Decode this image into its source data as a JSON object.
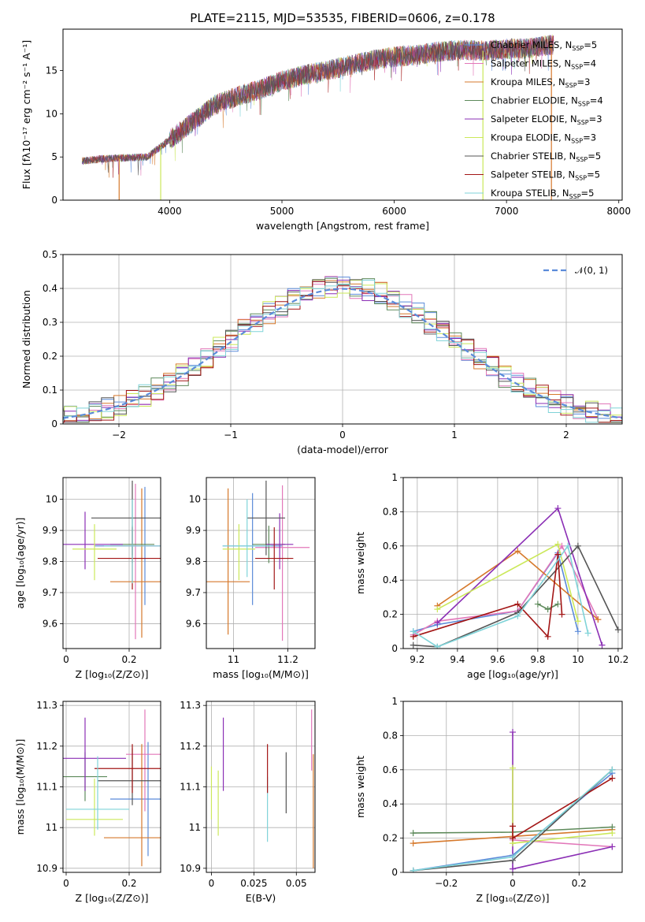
{
  "figure_title": "PLATE=2115, MJD=53535, FIBERID=0606, z=0.178",
  "colors": [
    "#5b8bd9",
    "#e277b9",
    "#d6792c",
    "#5e8a5b",
    "#8b2fb5",
    "#cbe85a",
    "#555555",
    "#a31616",
    "#7fd3d8"
  ],
  "legend_entries": [
    {
      "label": "Chabrier MILES, N",
      "sub": "SSP",
      "suffix": "=5"
    },
    {
      "label": "Salpeter MILES, N",
      "sub": "SSP",
      "suffix": "=4"
    },
    {
      "label": "Kroupa MILES, N",
      "sub": "SSP",
      "suffix": "=3"
    },
    {
      "label": "Chabrier ELODIE, N",
      "sub": "SSP",
      "suffix": "=4"
    },
    {
      "label": "Salpeter ELODIE, N",
      "sub": "SSP",
      "suffix": "=3"
    },
    {
      "label": "Kroupa ELODIE, N",
      "sub": "SSP",
      "suffix": "=3"
    },
    {
      "label": "Chabrier STELIB, N",
      "sub": "SSP",
      "suffix": "=5"
    },
    {
      "label": "Salpeter STELIB, N",
      "sub": "SSP",
      "suffix": "=5"
    },
    {
      "label": "Kroupa STELIB, N",
      "sub": "SSP",
      "suffix": "=5"
    }
  ],
  "chart_data": [
    {
      "id": "spectrum",
      "type": "line",
      "xlabel": "wavelength [Angstrom, rest frame]",
      "ylabel": "Flux [fλ10⁻¹⁷ erg cm⁻² s⁻¹ A⁻¹]",
      "xlim": [
        3050,
        8030
      ],
      "ylim": [
        0,
        19.8
      ],
      "xticks": [
        4000,
        5000,
        6000,
        7000,
        8000
      ],
      "yticks": [
        0,
        5,
        10,
        15
      ],
      "grid": false,
      "legend": "upper-right",
      "envelope": {
        "x": [
          3200,
          3400,
          3600,
          3800,
          4000,
          4200,
          4400,
          4600,
          4800,
          5000,
          5200,
          5400,
          5600,
          5800,
          6000,
          6200,
          6400,
          6600,
          6800,
          7000,
          7200,
          7400
        ],
        "y": [
          4.5,
          4.8,
          4.9,
          5.0,
          7.0,
          9.0,
          11.0,
          12.0,
          12.8,
          13.8,
          14.5,
          15.0,
          15.6,
          16.2,
          16.6,
          16.8,
          17.2,
          17.4,
          17.3,
          17.5,
          17.6,
          18.0
        ]
      },
      "dips": [
        {
          "x": 3550,
          "color_index": 2
        },
        {
          "x": 3920,
          "color_index": 5
        },
        {
          "x": 6790,
          "color_index": 5
        },
        {
          "x": 7400,
          "color_index": 2
        }
      ]
    },
    {
      "id": "residuals",
      "type": "histogram",
      "xlabel": "(data-model)/error",
      "ylabel": "Normed distribution",
      "xlim": [
        -2.5,
        2.5
      ],
      "ylim": [
        0,
        0.5
      ],
      "xticks": [
        -2,
        -1,
        0,
        1,
        2
      ],
      "yticks": [
        0,
        0.1,
        0.2,
        0.3,
        0.4,
        0.5
      ],
      "grid": true,
      "bin_width": 0.111,
      "reference": {
        "label": "𝒩(0, 1)",
        "mean": 0,
        "sigma": 1,
        "color": "#5b8bd9"
      }
    },
    {
      "id": "age-vs-Z",
      "type": "errorbar",
      "xlabel": "Z [log₁₀(Z/Z⊙)]",
      "ylabel": "age  [log₁₀(age/yr)]",
      "xlim": [
        -0.01,
        0.3
      ],
      "ylim": [
        9.52,
        10.07
      ],
      "xticks": [
        0.0,
        0.2
      ],
      "yticks": [
        9.6,
        9.7,
        9.8,
        9.9,
        10.0
      ],
      "grid": true,
      "points": [
        {
          "c": 0,
          "x": 0.25,
          "y": 9.85,
          "xerr": 0.16,
          "yerr": [
            0.19,
            0.19
          ]
        },
        {
          "c": 1,
          "x": 0.22,
          "y": 9.85,
          "xerr": 0.08,
          "yerr": [
            0.3,
            0.2
          ]
        },
        {
          "c": 2,
          "x": 0.24,
          "y": 9.735,
          "xerr": 0.1,
          "yerr": [
            0.18,
            0.3
          ]
        },
        {
          "c": 3,
          "x": 0.21,
          "y": 9.855,
          "xerr": 0.07,
          "yerr": [
            0.06,
            0.06
          ]
        },
        {
          "c": 4,
          "x": 0.06,
          "y": 9.855,
          "xerr": 0.12,
          "yerr": [
            0.08,
            0.105
          ]
        },
        {
          "c": 5,
          "x": 0.09,
          "y": 9.84,
          "xerr": 0.07,
          "yerr": [
            0.1,
            0.08
          ]
        },
        {
          "c": 6,
          "x": 0.21,
          "y": 9.94,
          "xerr": 0.13,
          "yerr": [
            0.12,
            0.12
          ]
        },
        {
          "c": 7,
          "x": 0.21,
          "y": 9.81,
          "xerr": 0.11,
          "yerr": [
            0.1,
            0.1
          ]
        },
        {
          "c": 8,
          "x": 0.21,
          "y": 9.85,
          "xerr": 0.09,
          "yerr": [
            0.12,
            0.15
          ]
        }
      ]
    },
    {
      "id": "age-vs-mass",
      "type": "errorbar",
      "xlabel": "mass [log₁₀(M/M⊙)]",
      "ylabel": "",
      "xlim": [
        10.9,
        11.3
      ],
      "ylim": [
        9.52,
        10.07
      ],
      "xticks": [
        11.0,
        11.2
      ],
      "yticks": [
        9.6,
        9.7,
        9.8,
        9.9,
        10.0
      ],
      "grid": true,
      "points": [
        {
          "c": 0,
          "x": 11.07,
          "y": 9.85,
          "xerr": 0.11,
          "yerr": [
            0.19,
            0.17
          ]
        },
        {
          "c": 1,
          "x": 11.18,
          "y": 9.845,
          "xerr": 0.1,
          "yerr": [
            0.3,
            0.2
          ]
        },
        {
          "c": 2,
          "x": 10.98,
          "y": 9.735,
          "xerr": 0.08,
          "yerr": [
            0.17,
            0.3
          ]
        },
        {
          "c": 3,
          "x": 11.13,
          "y": 9.855,
          "xerr": 0.06,
          "yerr": [
            0.06,
            0.06
          ]
        },
        {
          "c": 4,
          "x": 11.17,
          "y": 9.855,
          "xerr": 0.05,
          "yerr": [
            0.08,
            0.1
          ]
        },
        {
          "c": 5,
          "x": 11.02,
          "y": 9.84,
          "xerr": 0.06,
          "yerr": [
            0.1,
            0.08
          ]
        },
        {
          "c": 6,
          "x": 11.12,
          "y": 9.94,
          "xerr": 0.07,
          "yerr": [
            0.12,
            0.12
          ]
        },
        {
          "c": 7,
          "x": 11.15,
          "y": 9.81,
          "xerr": 0.07,
          "yerr": [
            0.1,
            0.1
          ]
        },
        {
          "c": 8,
          "x": 11.05,
          "y": 9.85,
          "xerr": 0.09,
          "yerr": [
            0.1,
            0.15
          ]
        }
      ]
    },
    {
      "id": "weight-vs-age",
      "type": "line",
      "xlabel": "age  [log₁₀(age/yr)]",
      "ylabel": "mass weight",
      "xlim": [
        9.13,
        10.22
      ],
      "ylim": [
        0,
        1.0
      ],
      "xticks": [
        9.2,
        9.4,
        9.6,
        9.8,
        10.0,
        10.2
      ],
      "yticks": [
        0.0,
        0.2,
        0.4,
        0.6,
        0.8,
        1.0
      ],
      "grid": true,
      "series": [
        {
          "c": 0,
          "x": [
            9.18,
            9.3,
            9.7,
            9.9,
            10.0
          ],
          "y": [
            0.1,
            0.14,
            0.22,
            0.56,
            0.1
          ]
        },
        {
          "c": 1,
          "x": [
            9.18,
            9.3,
            9.7,
            9.92,
            10.1
          ],
          "y": [
            0.08,
            0.16,
            0.22,
            0.6,
            0.17
          ]
        },
        {
          "c": 2,
          "x": [
            9.3,
            9.7,
            10.1
          ],
          "y": [
            0.25,
            0.57,
            0.17
          ]
        },
        {
          "c": 3,
          "x": [
            9.8,
            9.85,
            9.9
          ],
          "y": [
            0.26,
            0.23,
            0.26
          ]
        },
        {
          "c": 4,
          "x": [
            9.3,
            9.9,
            10.12
          ],
          "y": [
            0.15,
            0.82,
            0.02
          ]
        },
        {
          "c": 5,
          "x": [
            9.3,
            9.9,
            10.0
          ],
          "y": [
            0.23,
            0.61,
            0.16
          ]
        },
        {
          "c": 6,
          "x": [
            9.18,
            9.3,
            9.7,
            10.0,
            10.2
          ],
          "y": [
            0.02,
            0.01,
            0.21,
            0.6,
            0.11
          ]
        },
        {
          "c": 7,
          "x": [
            9.18,
            9.7,
            9.85,
            9.9,
            9.92
          ],
          "y": [
            0.07,
            0.26,
            0.07,
            0.55,
            0.2
          ]
        },
        {
          "c": 8,
          "x": [
            9.18,
            9.3,
            9.7,
            9.95,
            10.05
          ],
          "y": [
            0.1,
            0.01,
            0.19,
            0.6,
            0.09
          ]
        }
      ]
    },
    {
      "id": "mass-vs-Z",
      "type": "errorbar",
      "xlabel": "Z [log₁₀(Z/Z⊙)]",
      "ylabel": "mass [log₁₀(M/M⊙)]",
      "xlim": [
        -0.01,
        0.3
      ],
      "ylim": [
        10.89,
        11.31
      ],
      "xticks": [
        0.0,
        0.2
      ],
      "yticks": [
        10.9,
        11.0,
        11.1,
        11.2,
        11.3
      ],
      "grid": true,
      "points": [
        {
          "c": 0,
          "x": 0.26,
          "y": 11.07,
          "xerr": 0.12,
          "yerr": [
            0.14,
            0.14
          ]
        },
        {
          "c": 1,
          "x": 0.25,
          "y": 11.18,
          "xerr": 0.06,
          "yerr": [
            0.14,
            0.11
          ]
        },
        {
          "c": 2,
          "x": 0.24,
          "y": 10.975,
          "xerr": 0.12,
          "yerr": [
            0.07,
            0.23
          ]
        },
        {
          "c": 3,
          "x": 0.06,
          "y": 11.125,
          "xerr": 0.07,
          "yerr": [
            0.06,
            0.06
          ]
        },
        {
          "c": 4,
          "x": 0.06,
          "y": 11.17,
          "xerr": 0.13,
          "yerr": [
            0.08,
            0.1
          ]
        },
        {
          "c": 5,
          "x": 0.09,
          "y": 11.02,
          "xerr": 0.09,
          "yerr": [
            0.04,
            0.1
          ]
        },
        {
          "c": 6,
          "x": 0.21,
          "y": 11.115,
          "xerr": 0.11,
          "yerr": [
            0.06,
            0.08
          ]
        },
        {
          "c": 7,
          "x": 0.21,
          "y": 11.145,
          "xerr": 0.12,
          "yerr": [
            0.06,
            0.06
          ]
        },
        {
          "c": 8,
          "x": 0.1,
          "y": 11.045,
          "xerr": 0.1,
          "yerr": [
            0.05,
            0.13
          ]
        }
      ]
    },
    {
      "id": "mass-vs-EBV",
      "type": "errorbar",
      "xlabel": "E(B-V)",
      "ylabel": "",
      "xlim": [
        -0.003,
        0.061
      ],
      "ylim": [
        10.89,
        11.31
      ],
      "xticks": [
        0.0,
        0.025,
        0.05
      ],
      "yticks": [
        10.9,
        11.0,
        11.1,
        11.2,
        11.3
      ],
      "grid": true,
      "points": [
        {
          "c": 5,
          "x": 0.0,
          "y": 11.07,
          "yerr": [
            0.05,
            0.08
          ]
        },
        {
          "c": 5,
          "x": 0.004,
          "y": 11.06,
          "yerr": [
            0.08,
            0.08
          ]
        },
        {
          "c": 4,
          "x": 0.007,
          "y": 11.17,
          "yerr": [
            0.08,
            0.1
          ]
        },
        {
          "c": 8,
          "x": 0.033,
          "y": 11.045,
          "yerr": [
            0.08,
            0.08
          ]
        },
        {
          "c": 7,
          "x": 0.033,
          "y": 11.145,
          "yerr": [
            0.06,
            0.06
          ]
        },
        {
          "c": 6,
          "x": 0.044,
          "y": 11.115,
          "yerr": [
            0.08,
            0.07
          ]
        },
        {
          "c": 1,
          "x": 0.059,
          "y": 11.2,
          "yerr": [
            0.06,
            0.09
          ]
        },
        {
          "c": 2,
          "x": 0.06,
          "y": 11.04,
          "yerr": [
            0.14,
            0.14
          ]
        }
      ]
    },
    {
      "id": "weight-vs-Z",
      "type": "line",
      "xlabel": "Z [log₁₀(Z/Z⊙)]",
      "ylabel": "mass weight",
      "xlim": [
        -0.33,
        0.33
      ],
      "ylim": [
        0,
        1.0
      ],
      "xticks": [
        -0.2,
        0.0,
        0.2
      ],
      "yticks": [
        0.0,
        0.2,
        0.4,
        0.6,
        0.8,
        1.0
      ],
      "grid": true,
      "series": [
        {
          "c": 0,
          "x": [
            -0.3,
            0.0,
            0.3
          ],
          "y": [
            0.01,
            0.1,
            0.58
          ]
        },
        {
          "c": 1,
          "x": [
            0.0,
            0.3
          ],
          "y": [
            0.19,
            0.15
          ]
        },
        {
          "c": 2,
          "x": [
            -0.3,
            0.0,
            0.3
          ],
          "y": [
            0.17,
            0.21,
            0.25
          ]
        },
        {
          "c": 3,
          "x": [
            -0.3,
            0.0,
            0.3
          ],
          "y": [
            0.23,
            0.235,
            0.265
          ]
        },
        {
          "c": 4,
          "x": [
            0.0,
            0.0,
            0.3
          ],
          "y": [
            0.82,
            0.02,
            0.15
          ]
        },
        {
          "c": 5,
          "x": [
            0.0,
            0.0,
            0.3
          ],
          "y": [
            0.61,
            0.17,
            0.23
          ]
        },
        {
          "c": 6,
          "x": [
            -0.3,
            0.0,
            0.3
          ],
          "y": [
            0.01,
            0.07,
            0.6
          ]
        },
        {
          "c": 7,
          "x": [
            0.0,
            0.0,
            0.3
          ],
          "y": [
            0.27,
            0.2,
            0.55
          ]
        },
        {
          "c": 8,
          "x": [
            -0.3,
            0.0,
            0.3
          ],
          "y": [
            0.01,
            0.09,
            0.6
          ]
        }
      ]
    }
  ]
}
